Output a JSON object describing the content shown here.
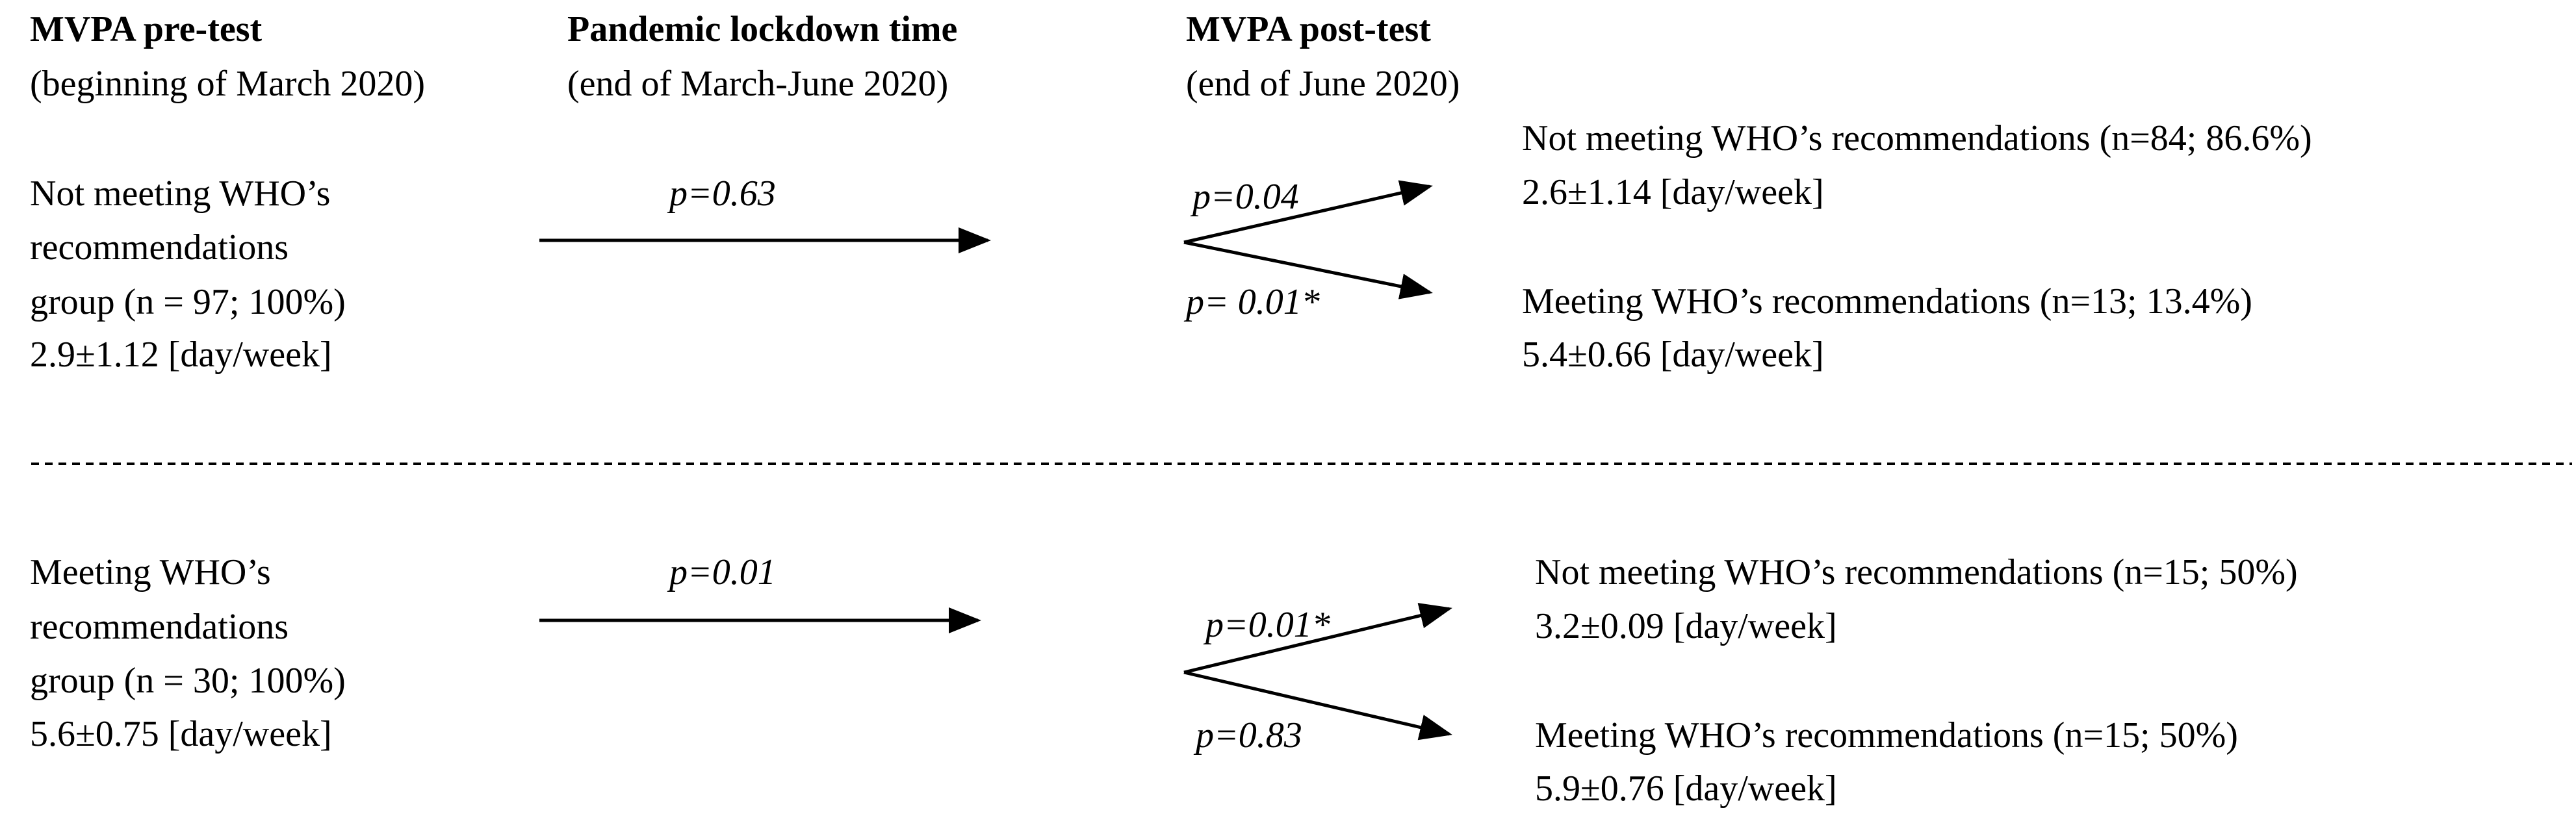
{
  "header": {
    "col1_title": "MVPA pre-test",
    "col1_sub": "(beginning of March 2020)",
    "col2_title": "Pandemic lockdown time",
    "col2_sub": "(end of March-June 2020)",
    "col3_title": "MVPA post-test",
    "col3_sub": "(end of June 2020)"
  },
  "group_not_meeting": {
    "line1": "Not meeting WHO’s",
    "line2": "recommendations",
    "line3": "group (n = 97; 100%)",
    "line4": "2.9±1.12 [day/week]",
    "p_lockdown": "p=0.63",
    "p_upper": "p=0.04",
    "p_lower": "p= 0.01*",
    "outcome_not_label": "Not meeting WHO’s recommendations (n=84; 86.6%)",
    "outcome_not_value": "2.6±1.14 [day/week]",
    "outcome_meet_label": "Meeting WHO’s recommendations (n=13; 13.4%)",
    "outcome_meet_value": "5.4±0.66 [day/week]"
  },
  "group_meeting": {
    "line1": "Meeting WHO’s",
    "line2": "recommendations",
    "line3": "group (n = 30; 100%)",
    "line4": "5.6±0.75 [day/week]",
    "p_lockdown": "p=0.01",
    "p_upper": "p=0.01*",
    "p_lower": "p=0.83",
    "outcome_not_label": "Not meeting WHO’s recommendations (n=15; 50%)",
    "outcome_not_value": "3.2±0.09 [day/week]",
    "outcome_meet_label": "Meeting WHO’s recommendations (n=15; 50%)",
    "outcome_meet_value": "5.9±0.76 [day/week]"
  },
  "colors": {
    "text": "#000000",
    "background": "#ffffff"
  }
}
